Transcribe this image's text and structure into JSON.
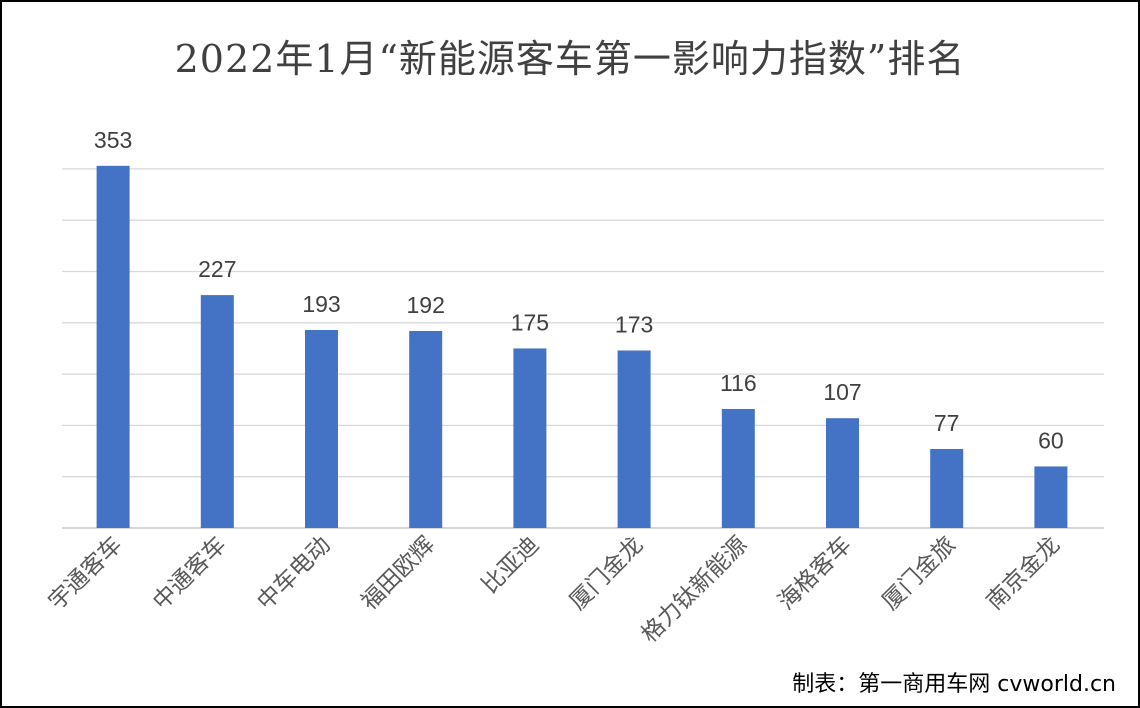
{
  "chart_data": {
    "type": "bar",
    "title": "2022年1月“新能源客车第一影响力指数”排名",
    "categories": [
      "宇通客车",
      "中通客车",
      "中车电动",
      "福田欧辉",
      "比亚迪",
      "厦门金龙",
      "格力钛新能源",
      "海格客车",
      "厦门金旅",
      "南京金龙"
    ],
    "values": [
      353,
      227,
      193,
      192,
      175,
      173,
      116,
      107,
      77,
      60
    ],
    "ylim": [
      0,
      350
    ],
    "grid": true,
    "bar_color": "#4472C4",
    "gridline_color": "#D9D9D9"
  },
  "credit": "制表：第一商用车网 cvworld.cn"
}
